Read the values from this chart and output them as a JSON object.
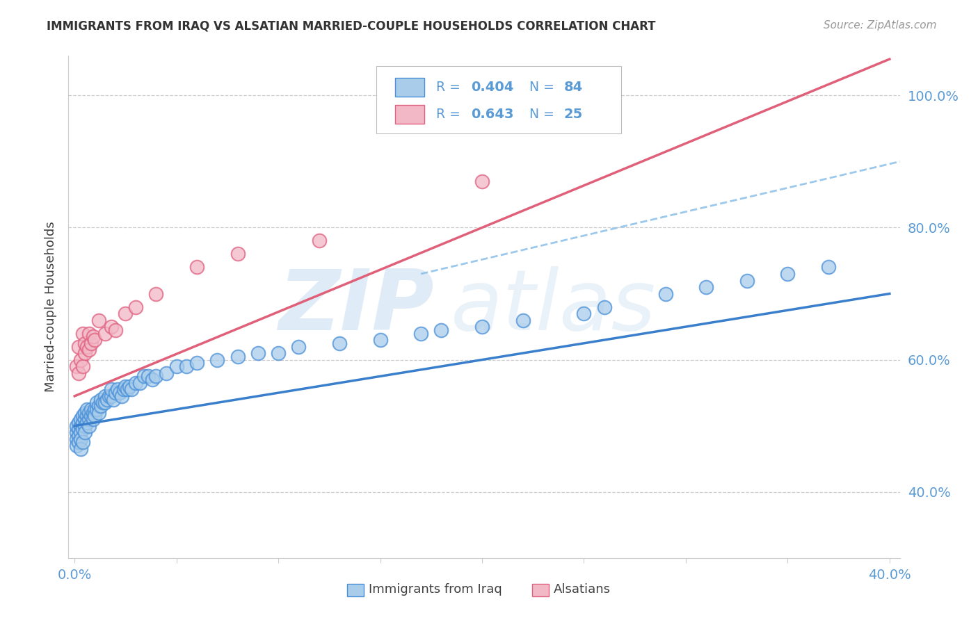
{
  "title": "IMMIGRANTS FROM IRAQ VS ALSATIAN MARRIED-COUPLE HOUSEHOLDS CORRELATION CHART",
  "source": "Source: ZipAtlas.com",
  "ylabel": "Married-couple Households",
  "legend_blue_r": "0.404",
  "legend_blue_n": "84",
  "legend_pink_r": "0.643",
  "legend_pink_n": "25",
  "watermark_zip": "ZIP",
  "watermark_atlas": "atlas",
  "xlim": [
    -0.003,
    0.405
  ],
  "ylim": [
    0.3,
    1.06
  ],
  "xticks": [
    0.0,
    0.05,
    0.1,
    0.15,
    0.2,
    0.25,
    0.3,
    0.35,
    0.4
  ],
  "xtick_labels": [
    "0.0%",
    "",
    "",
    "",
    "",
    "",
    "",
    "",
    "40.0%"
  ],
  "ytick_values": [
    0.4,
    0.6,
    0.8,
    1.0
  ],
  "ytick_labels": [
    "40.0%",
    "60.0%",
    "80.0%",
    "100.0%"
  ],
  "blue_face": "#A8CCEA",
  "blue_edge": "#4A90D9",
  "pink_face": "#F2B8C6",
  "pink_edge": "#E06080",
  "blue_line_color": "#3A7FCC",
  "pink_line_color": "#E0607A",
  "dashed_line_color": "#8BBFE8",
  "grid_color": "#CCCCCC",
  "axis_tick_color": "#5B9BD5",
  "title_color": "#333333",
  "source_color": "#999999",
  "legend_text_color": "#5B9BD5",
  "bg": "#FFFFFF",
  "blue_line_x0": 0.0,
  "blue_line_x1": 0.4,
  "blue_line_y0": 0.5,
  "blue_line_y1": 0.7,
  "pink_line_x0": 0.0,
  "pink_line_x1": 0.4,
  "pink_line_y0": 0.545,
  "pink_line_y1": 1.055,
  "dash_line_x0": 0.17,
  "dash_line_x1": 0.405,
  "dash_line_y0": 0.73,
  "dash_line_y1": 0.9,
  "blue_scatter_x": [
    0.001,
    0.001,
    0.001,
    0.001,
    0.002,
    0.002,
    0.002,
    0.002,
    0.003,
    0.003,
    0.003,
    0.003,
    0.003,
    0.004,
    0.004,
    0.004,
    0.004,
    0.005,
    0.005,
    0.005,
    0.005,
    0.006,
    0.006,
    0.006,
    0.007,
    0.007,
    0.007,
    0.008,
    0.008,
    0.009,
    0.009,
    0.01,
    0.01,
    0.011,
    0.011,
    0.012,
    0.012,
    0.013,
    0.013,
    0.014,
    0.015,
    0.015,
    0.016,
    0.017,
    0.018,
    0.018,
    0.019,
    0.02,
    0.021,
    0.022,
    0.023,
    0.024,
    0.025,
    0.026,
    0.027,
    0.028,
    0.03,
    0.032,
    0.034,
    0.036,
    0.038,
    0.04,
    0.045,
    0.05,
    0.055,
    0.06,
    0.07,
    0.08,
    0.09,
    0.1,
    0.11,
    0.13,
    0.15,
    0.17,
    0.2,
    0.22,
    0.26,
    0.29,
    0.31,
    0.33,
    0.35,
    0.37,
    0.25,
    0.18
  ],
  "blue_scatter_y": [
    0.49,
    0.48,
    0.5,
    0.47,
    0.495,
    0.505,
    0.485,
    0.475,
    0.5,
    0.49,
    0.51,
    0.48,
    0.465,
    0.505,
    0.495,
    0.515,
    0.475,
    0.51,
    0.5,
    0.52,
    0.49,
    0.515,
    0.505,
    0.525,
    0.51,
    0.5,
    0.52,
    0.515,
    0.525,
    0.52,
    0.51,
    0.525,
    0.515,
    0.525,
    0.535,
    0.53,
    0.52,
    0.53,
    0.54,
    0.535,
    0.545,
    0.535,
    0.54,
    0.545,
    0.545,
    0.555,
    0.54,
    0.55,
    0.555,
    0.55,
    0.545,
    0.555,
    0.56,
    0.555,
    0.56,
    0.555,
    0.565,
    0.565,
    0.575,
    0.575,
    0.57,
    0.575,
    0.58,
    0.59,
    0.59,
    0.595,
    0.6,
    0.605,
    0.61,
    0.61,
    0.62,
    0.625,
    0.63,
    0.64,
    0.65,
    0.66,
    0.68,
    0.7,
    0.71,
    0.72,
    0.73,
    0.74,
    0.67,
    0.645
  ],
  "pink_scatter_x": [
    0.001,
    0.002,
    0.002,
    0.003,
    0.004,
    0.004,
    0.005,
    0.005,
    0.006,
    0.007,
    0.007,
    0.008,
    0.009,
    0.01,
    0.012,
    0.015,
    0.018,
    0.02,
    0.025,
    0.03,
    0.04,
    0.06,
    0.08,
    0.12,
    0.2
  ],
  "pink_scatter_y": [
    0.59,
    0.58,
    0.62,
    0.6,
    0.59,
    0.64,
    0.61,
    0.625,
    0.62,
    0.615,
    0.64,
    0.625,
    0.635,
    0.63,
    0.66,
    0.64,
    0.65,
    0.645,
    0.67,
    0.68,
    0.7,
    0.74,
    0.76,
    0.78,
    0.87
  ]
}
